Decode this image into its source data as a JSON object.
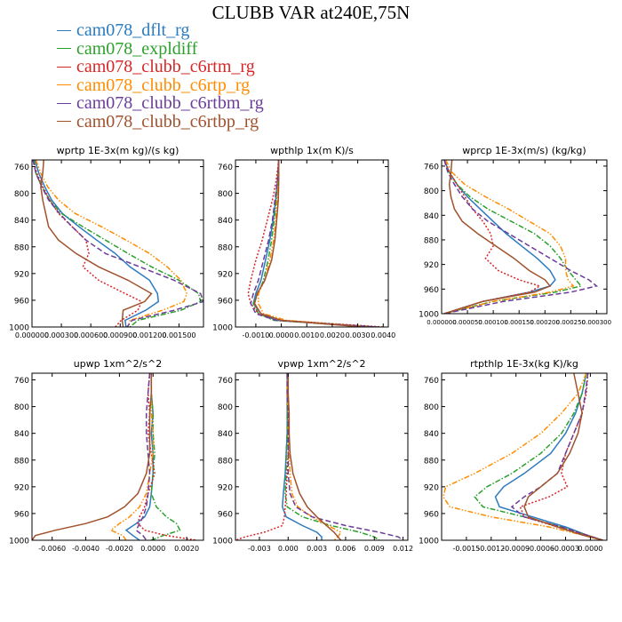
{
  "figure": {
    "title": "CLUBB VAR at240E,75N",
    "legend": [
      {
        "label": "cam078_dflt_rg",
        "color": "#2b7bbf"
      },
      {
        "label": "cam078_expldiff",
        "color": "#2ca02c"
      },
      {
        "label": "cam078_clubb_c6rtm_rg",
        "color": "#d62728"
      },
      {
        "label": "cam078_clubb_c6rtp_rg",
        "color": "#ff8c00"
      },
      {
        "label": "cam078_clubb_c6rtbm_rg",
        "color": "#6a3d9a"
      },
      {
        "label": "cam078_clubb_c6rtbp_rg",
        "color": "#a0522d"
      }
    ]
  },
  "chart_data": [
    {
      "type": "line",
      "title": "wprtp  1E-3x(m kg)/(s kg)",
      "xlim": [
        0.0,
        0.00175
      ],
      "ylim": [
        1000,
        750
      ],
      "xticks": [
        "0.000000",
        "0.000300",
        "0.000600",
        "0.000900",
        "0.001200",
        "0.001500"
      ],
      "xtick_values": [
        0,
        0.0003,
        0.0006,
        0.0009,
        0.0012,
        0.0015
      ],
      "yticks": [
        760,
        800,
        840,
        880,
        920,
        960,
        1000
      ],
      "levels": [
        750,
        770,
        790,
        810,
        830,
        850,
        870,
        890,
        910,
        930,
        950,
        962,
        975,
        990,
        1000
      ],
      "series": [
        {
          "name": "cam078_dflt_rg",
          "values": [
            3e-05,
            7e-05,
            0.00013,
            0.0002,
            0.00031,
            0.00048,
            0.00066,
            0.00085,
            0.001,
            0.0012,
            0.00128,
            0.00129,
            0.00116,
            0.00095,
            0.00096
          ]
        },
        {
          "name": "cam078_expldiff",
          "values": [
            2e-05,
            4e-05,
            0.0001,
            0.00018,
            0.0003,
            0.00052,
            0.00075,
            0.00098,
            0.00122,
            0.0015,
            0.0017,
            0.00172,
            0.00152,
            0.00108,
            0.001
          ]
        },
        {
          "name": "cam078_clubb_c6rtm_rg",
          "values": [
            1e-05,
            5e-05,
            0.00011,
            0.00018,
            0.00027,
            0.00041,
            0.00055,
            0.00058,
            0.00052,
            0.00068,
            0.00095,
            0.00112,
            0.00108,
            0.00091,
            0.00085
          ]
        },
        {
          "name": "cam078_clubb_c6rtp_rg",
          "values": [
            4e-05,
            9e-05,
            0.00016,
            0.00027,
            0.00044,
            0.00071,
            0.00096,
            0.0012,
            0.00138,
            0.00152,
            0.00158,
            0.00155,
            0.00133,
            0.001,
            0.00098
          ]
        },
        {
          "name": "cam078_clubb_c6rtbm_rg",
          "values": [
            1e-05,
            4e-05,
            0.0001,
            0.00017,
            0.00028,
            0.00041,
            0.00055,
            0.00075,
            0.0011,
            0.00145,
            0.00172,
            0.00175,
            0.00145,
            0.00102,
            0.00097
          ]
        },
        {
          "name": "cam078_clubb_c6rtbp_rg",
          "values": [
            0.00012,
            0.00011,
            9e-05,
            0.00011,
            0.00014,
            0.00017,
            0.00027,
            0.00045,
            0.00068,
            0.00098,
            0.00122,
            0.00115,
            0.00093,
            0.00092,
            0.00093
          ]
        }
      ]
    },
    {
      "type": "line",
      "title": "wpthlp  1x(m K)/s",
      "xlim": [
        -0.0018,
        0.0042
      ],
      "ylim": [
        1000,
        750
      ],
      "xticks": [
        "-0.0010",
        "0.0000",
        "0.0010",
        "0.0020",
        "0.0030",
        "0.0040"
      ],
      "xtick_values": [
        -0.001,
        0,
        0.001,
        0.002,
        0.003,
        0.004
      ],
      "yticks": [
        760,
        800,
        840,
        880,
        920,
        960,
        1000
      ],
      "levels": [
        750,
        780,
        810,
        840,
        870,
        900,
        930,
        950,
        965,
        980,
        990,
        1000
      ],
      "series": [
        {
          "name": "cam078_dflt_rg",
          "values": [
            -0.0001,
            -0.00015,
            -0.00022,
            -0.00032,
            -0.00045,
            -0.00062,
            -0.0008,
            -0.001,
            -0.0011,
            -0.0008,
            -0.0002,
            0.0038
          ]
        },
        {
          "name": "cam078_expldiff",
          "values": [
            -0.0001,
            -0.00013,
            -0.0002,
            -0.00028,
            -0.00038,
            -0.00052,
            -0.0007,
            -0.0009,
            -0.0011,
            -0.0009,
            -0.0003,
            0.0035
          ]
        },
        {
          "name": "cam078_clubb_c6rtm_rg",
          "values": [
            -0.0001,
            -0.0002,
            -0.00035,
            -0.00055,
            -0.00075,
            -0.001,
            -0.0012,
            -0.0013,
            -0.0012,
            -0.0009,
            0.0,
            0.004
          ]
        },
        {
          "name": "cam078_clubb_c6rtp_rg",
          "values": [
            -0.0001,
            -0.00012,
            -0.00016,
            -0.00022,
            -0.0003,
            -0.00045,
            -0.00065,
            -0.0009,
            -0.0009,
            -0.0007,
            0.0002,
            0.0035
          ]
        },
        {
          "name": "cam078_clubb_c6rtbm_rg",
          "values": [
            -0.0001,
            -0.00015,
            -0.00025,
            -0.00035,
            -0.0005,
            -0.0007,
            -0.0009,
            -0.0011,
            -0.0012,
            -0.001,
            -0.0002,
            0.0036
          ]
        },
        {
          "name": "cam078_clubb_c6rtbp_rg",
          "values": [
            -0.0001,
            -0.0001,
            -0.00012,
            -0.00018,
            -0.00025,
            -0.00038,
            -0.00065,
            -0.00095,
            -0.00105,
            -0.0008,
            0.0,
            0.0032
          ]
        }
      ]
    },
    {
      "type": "line",
      "title": "wprcp  1E-3x(m/s) (kg/kg)",
      "xlim": [
        0.0,
        0.00032
      ],
      "ylim": [
        1000,
        750
      ],
      "xticks": [
        "0.000000",
        "0.000050",
        "0.000100",
        "0.000150",
        "0.000200",
        "0.000250",
        "0.000300"
      ],
      "xtick_values": [
        0,
        5e-05,
        0.0001,
        0.00015,
        0.0002,
        0.00025,
        0.0003
      ],
      "yticks": [
        760,
        800,
        840,
        880,
        920,
        960,
        1000
      ],
      "levels": [
        750,
        770,
        790,
        810,
        830,
        850,
        870,
        890,
        910,
        930,
        945,
        955,
        965,
        980,
        1000
      ],
      "series": [
        {
          "name": "cam078_dflt_rg",
          "values": [
            5e-06,
            1.5e-05,
            3e-05,
            5e-05,
            7.5e-05,
            0.0001,
            0.000125,
            0.000155,
            0.000185,
            0.00021,
            0.00022,
            0.00021,
            0.00017,
            8e-05,
            5e-06
          ]
        },
        {
          "name": "cam078_expldiff",
          "values": [
            5e-06,
            1.5e-05,
            3e-05,
            5.5e-05,
            9e-05,
            0.000135,
            0.00018,
            0.00021,
            0.00023,
            0.000245,
            0.00026,
            0.00027,
            0.00022,
            0.0001,
            5e-06
          ]
        },
        {
          "name": "cam078_clubb_c6rtm_rg",
          "values": [
            5e-06,
            1.5e-05,
            3e-05,
            4.5e-05,
            6e-05,
            8e-05,
            9.5e-05,
            0.0001,
            8.5e-05,
            0.00011,
            0.00015,
            0.00019,
            0.00017,
            8e-05,
            5e-06
          ]
        },
        {
          "name": "cam078_clubb_c6rtp_rg",
          "values": [
            8e-06,
            2e-05,
            4.5e-05,
            8.5e-05,
            0.00013,
            0.00017,
            0.00021,
            0.00023,
            0.00024,
            0.00024,
            0.000245,
            0.000255,
            0.00021,
            0.0001,
            5e-06
          ]
        },
        {
          "name": "cam078_clubb_c6rtbm_rg",
          "values": [
            5e-06,
            1.2e-05,
            2.5e-05,
            4e-05,
            6e-05,
            9e-05,
            0.00013,
            0.00017,
            0.00021,
            0.00025,
            0.000285,
            0.0003,
            0.00025,
            0.00012,
            5e-06
          ]
        },
        {
          "name": "cam078_clubb_c6rtbp_rg",
          "values": [
            2e-05,
            1.8e-05,
            1.5e-05,
            1.8e-05,
            2.5e-05,
            4e-05,
            7e-05,
            0.000105,
            0.00014,
            0.00017,
            0.0002,
            0.00021,
            0.00018,
            8e-05,
            5e-06
          ]
        }
      ]
    },
    {
      "type": "line",
      "title": "upwp  1xm^2/s^2",
      "xlim": [
        -0.0072,
        0.003
      ],
      "ylim": [
        1000,
        750
      ],
      "xticks": [
        "-0.0060",
        "-0.0040",
        "-0.0020",
        "0.0000",
        "0.0020"
      ],
      "xtick_values": [
        -0.006,
        -0.004,
        -0.002,
        0,
        0.002
      ],
      "yticks": [
        760,
        800,
        840,
        880,
        920,
        960,
        1000
      ],
      "levels": [
        750,
        780,
        810,
        840,
        870,
        900,
        930,
        950,
        965,
        975,
        985,
        993,
        1000
      ],
      "series": [
        {
          "name": "cam078_dflt_rg",
          "values": [
            -0.0001,
            -0.0001,
            0.0,
            -0.0001,
            0.0,
            0.0,
            -0.0001,
            -0.0002,
            -0.0005,
            -0.001,
            -0.0016,
            -0.0012,
            -0.0008
          ]
        },
        {
          "name": "cam078_expldiff",
          "values": [
            -0.0001,
            -0.0001,
            0.0,
            0.0,
            0.0001,
            0.0,
            -0.0001,
            0.0002,
            0.0008,
            0.0014,
            0.0016,
            0.0006,
            -0.0001
          ]
        },
        {
          "name": "cam078_clubb_c6rtm_rg",
          "values": [
            -0.0002,
            -0.0003,
            -0.0002,
            -0.0003,
            -0.0001,
            0.0001,
            -0.0003,
            -0.0005,
            -0.0008,
            -0.0009,
            -0.0005,
            0.0008,
            0.0026
          ]
        },
        {
          "name": "cam078_clubb_c6rtp_rg",
          "values": [
            -0.0001,
            -0.0001,
            -0.0001,
            0.0,
            0.0,
            -0.0002,
            -0.0004,
            -0.0008,
            -0.0014,
            -0.002,
            -0.0025,
            -0.0018,
            -0.0016
          ]
        },
        {
          "name": "cam078_clubb_c6rtbm_rg",
          "values": [
            -0.0002,
            -0.0003,
            -0.0004,
            -0.0004,
            -0.0003,
            -0.0002,
            -0.0003,
            -0.0004,
            -0.0006,
            -0.0008,
            -0.001,
            -0.0006,
            -0.0004
          ]
        },
        {
          "name": "cam078_clubb_c6rtbp_rg",
          "values": [
            -0.0001,
            -0.0001,
            -0.0002,
            -0.0002,
            -0.0002,
            -0.0004,
            -0.0009,
            -0.0017,
            -0.0027,
            -0.004,
            -0.0058,
            -0.007,
            -0.0072
          ]
        }
      ]
    },
    {
      "type": "line",
      "title": "vpwp  1xm^2/s^2",
      "xlim": [
        -0.0055,
        0.0125
      ],
      "ylim": [
        1000,
        750
      ],
      "xticks": [
        "-0.003",
        "0.000",
        "0.003",
        "0.006",
        "0.009",
        "0.012"
      ],
      "xtick_values": [
        -0.003,
        0,
        0.003,
        0.006,
        0.009,
        0.012
      ],
      "yticks": [
        760,
        800,
        840,
        880,
        920,
        960,
        1000
      ],
      "levels": [
        750,
        780,
        810,
        840,
        870,
        900,
        930,
        950,
        965,
        978,
        988,
        995,
        1000
      ],
      "series": [
        {
          "name": "cam078_dflt_rg",
          "values": [
            -0.0001,
            -0.0001,
            -0.0001,
            -0.0001,
            -0.0002,
            -0.0003,
            -0.0005,
            -0.0006,
            -0.0002,
            0.0015,
            0.003,
            0.0035,
            0.0035
          ]
        },
        {
          "name": "cam078_expldiff",
          "values": [
            -0.0001,
            -0.0001,
            -0.0001,
            -0.0001,
            -0.0002,
            -0.0002,
            -0.0003,
            -0.0001,
            0.0015,
            0.0045,
            0.0075,
            0.009,
            0.0095
          ]
        },
        {
          "name": "cam078_clubb_c6rtm_rg",
          "values": [
            -0.0001,
            -0.0001,
            0.0,
            0.0,
            0.0,
            -0.0001,
            -0.0002,
            -0.0003,
            -0.0004,
            -0.0006,
            -0.0025,
            -0.0045,
            -0.0055
          ]
        },
        {
          "name": "cam078_clubb_c6rtp_rg",
          "values": [
            -0.0001,
            -0.0001,
            0.0,
            0.0,
            0.0001,
            0.0002,
            0.0004,
            0.001,
            0.0025,
            0.0042,
            0.0055,
            0.0052,
            0.0048
          ]
        },
        {
          "name": "cam078_clubb_c6rtbm_rg",
          "values": [
            -0.0001,
            -0.0001,
            0.0,
            0.0,
            0.0,
            0.0,
            0.0002,
            0.0008,
            0.0025,
            0.006,
            0.0095,
            0.0115,
            0.012
          ]
        },
        {
          "name": "cam078_clubb_c6rtbp_rg",
          "values": [
            0.0,
            0.0,
            0.0001,
            0.0001,
            0.0002,
            0.0005,
            0.0012,
            0.002,
            0.003,
            0.004,
            0.0048,
            0.0052,
            0.0055
          ]
        }
      ]
    },
    {
      "type": "line",
      "title": "rtpthlp  1E-3x(kg K)/kg",
      "xlim": [
        -0.0018,
        0.0002
      ],
      "ylim": [
        1000,
        750
      ],
      "xticks": [
        "-0.0015",
        "-0.0012",
        "-0.0009",
        "-0.0006",
        "-0.0003",
        "0.0000"
      ],
      "xtick_values": [
        -0.0015,
        -0.0012,
        -0.0009,
        -0.0006,
        -0.0003,
        0
      ],
      "yticks": [
        760,
        800,
        840,
        880,
        920,
        960,
        1000
      ],
      "levels": [
        750,
        780,
        810,
        840,
        870,
        900,
        920,
        935,
        950,
        965,
        980,
        992,
        1000
      ],
      "series": [
        {
          "name": "cam078_dflt_rg",
          "values": [
            -5e-05,
            -0.0001,
            -0.00018,
            -0.0003,
            -0.00048,
            -0.0008,
            -0.00105,
            -0.00115,
            -0.0011,
            -0.0007,
            -0.0003,
            -5e-05,
            0.00015
          ]
        },
        {
          "name": "cam078_expldiff",
          "values": [
            -5e-05,
            -0.0001,
            -0.0002,
            -0.00035,
            -0.0006,
            -0.00095,
            -0.00125,
            -0.0014,
            -0.0013,
            -0.0008,
            -0.00035,
            -5e-05,
            0.00015
          ]
        },
        {
          "name": "cam078_clubb_c6rtm_rg",
          "values": [
            -3e-05,
            -5e-05,
            -0.0001,
            -0.0002,
            -0.0003,
            -0.00035,
            -0.00028,
            -0.0005,
            -0.00085,
            -0.0008,
            -0.0004,
            -5e-05,
            0.00015
          ]
        },
        {
          "name": "cam078_clubb_c6rtp_rg",
          "values": [
            -5e-05,
            -0.00015,
            -0.00035,
            -0.0006,
            -0.00095,
            -0.0014,
            -0.00175,
            -0.00178,
            -0.0017,
            -0.0012,
            -0.0005,
            -0.0001,
            0.00015
          ]
        },
        {
          "name": "cam078_clubb_c6rtbm_rg",
          "values": [
            -3e-05,
            -6e-05,
            -0.0001,
            -0.0002,
            -0.0003,
            -0.0004,
            -0.0006,
            -0.0008,
            -0.00095,
            -0.0008,
            -0.00035,
            -5e-05,
            0.00015
          ]
        },
        {
          "name": "cam078_clubb_c6rtbp_rg",
          "values": [
            -0.0002,
            -0.00015,
            -0.0001,
            -0.00015,
            -0.00025,
            -0.0004,
            -0.0006,
            -0.00075,
            -0.0008,
            -0.00075,
            -0.0004,
            -0.0001,
            0.00015
          ]
        }
      ]
    }
  ]
}
